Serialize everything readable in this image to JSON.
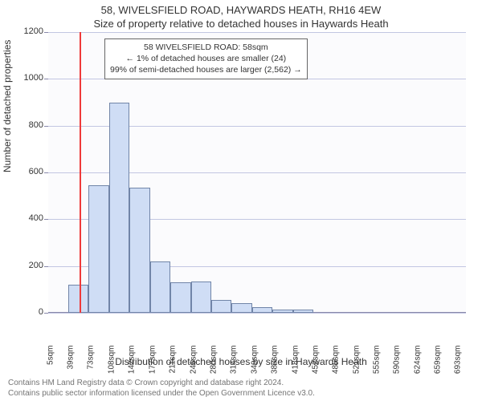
{
  "titles": {
    "line1": "58, WIVELSFIELD ROAD, HAYWARDS HEATH, RH16 4EW",
    "line2": "Size of property relative to detached houses in Haywards Heath"
  },
  "axes": {
    "ylabel": "Number of detached properties",
    "xlabel": "Distribution of detached houses by size in Haywards Heath"
  },
  "footer": {
    "line1": "Contains HM Land Registry data © Crown copyright and database right 2024.",
    "line2": "Contains public sector information licensed under the Open Government Licence v3.0."
  },
  "annotation": {
    "line1": "58 WIVELSFIELD ROAD: 58sqm",
    "line2": "← 1% of detached houses are smaller (24)",
    "line3": "99% of semi-detached houses are larger (2,562) →",
    "box_border": "#666666",
    "box_bg": "#ffffff",
    "font_size": 10.5
  },
  "chart": {
    "type": "histogram",
    "plot_bg": "#fbfbfd",
    "page_bg": "#ffffff",
    "grid_color": "#c2c6e2",
    "axis_color": "#8888aa",
    "bar_fill": "#cfddf5",
    "bar_border": "#7185a8",
    "ref_line_color": "#ef3a3a",
    "ref_value_sqm": 58,
    "x_min": 5,
    "x_max": 710,
    "ylim": [
      0,
      1200
    ],
    "yticks": [
      0,
      200,
      400,
      600,
      800,
      1000,
      1200
    ],
    "xtick_labels": [
      "5sqm",
      "39sqm",
      "73sqm",
      "108sqm",
      "142sqm",
      "177sqm",
      "211sqm",
      "246sqm",
      "280sqm",
      "314sqm",
      "349sqm",
      "383sqm",
      "418sqm",
      "452sqm",
      "486sqm",
      "521sqm",
      "555sqm",
      "590sqm",
      "624sqm",
      "659sqm",
      "693sqm"
    ],
    "xtick_values": [
      5,
      39,
      73,
      108,
      142,
      177,
      211,
      246,
      280,
      314,
      349,
      383,
      418,
      452,
      486,
      521,
      555,
      590,
      624,
      659,
      693
    ],
    "bars": [
      {
        "x0": 39,
        "x1": 73,
        "value": 120
      },
      {
        "x0": 73,
        "x1": 108,
        "value": 545
      },
      {
        "x0": 108,
        "x1": 142,
        "value": 900
      },
      {
        "x0": 142,
        "x1": 177,
        "value": 535
      },
      {
        "x0": 177,
        "x1": 211,
        "value": 220
      },
      {
        "x0": 211,
        "x1": 246,
        "value": 130
      },
      {
        "x0": 246,
        "x1": 280,
        "value": 135
      },
      {
        "x0": 280,
        "x1": 314,
        "value": 55
      },
      {
        "x0": 314,
        "x1": 349,
        "value": 40
      },
      {
        "x0": 349,
        "x1": 383,
        "value": 25
      },
      {
        "x0": 383,
        "x1": 418,
        "value": 15
      },
      {
        "x0": 418,
        "x1": 452,
        "value": 15
      }
    ],
    "label_fontsize": 12,
    "tick_fontsize": 11,
    "xtick_fontsize": 10
  }
}
